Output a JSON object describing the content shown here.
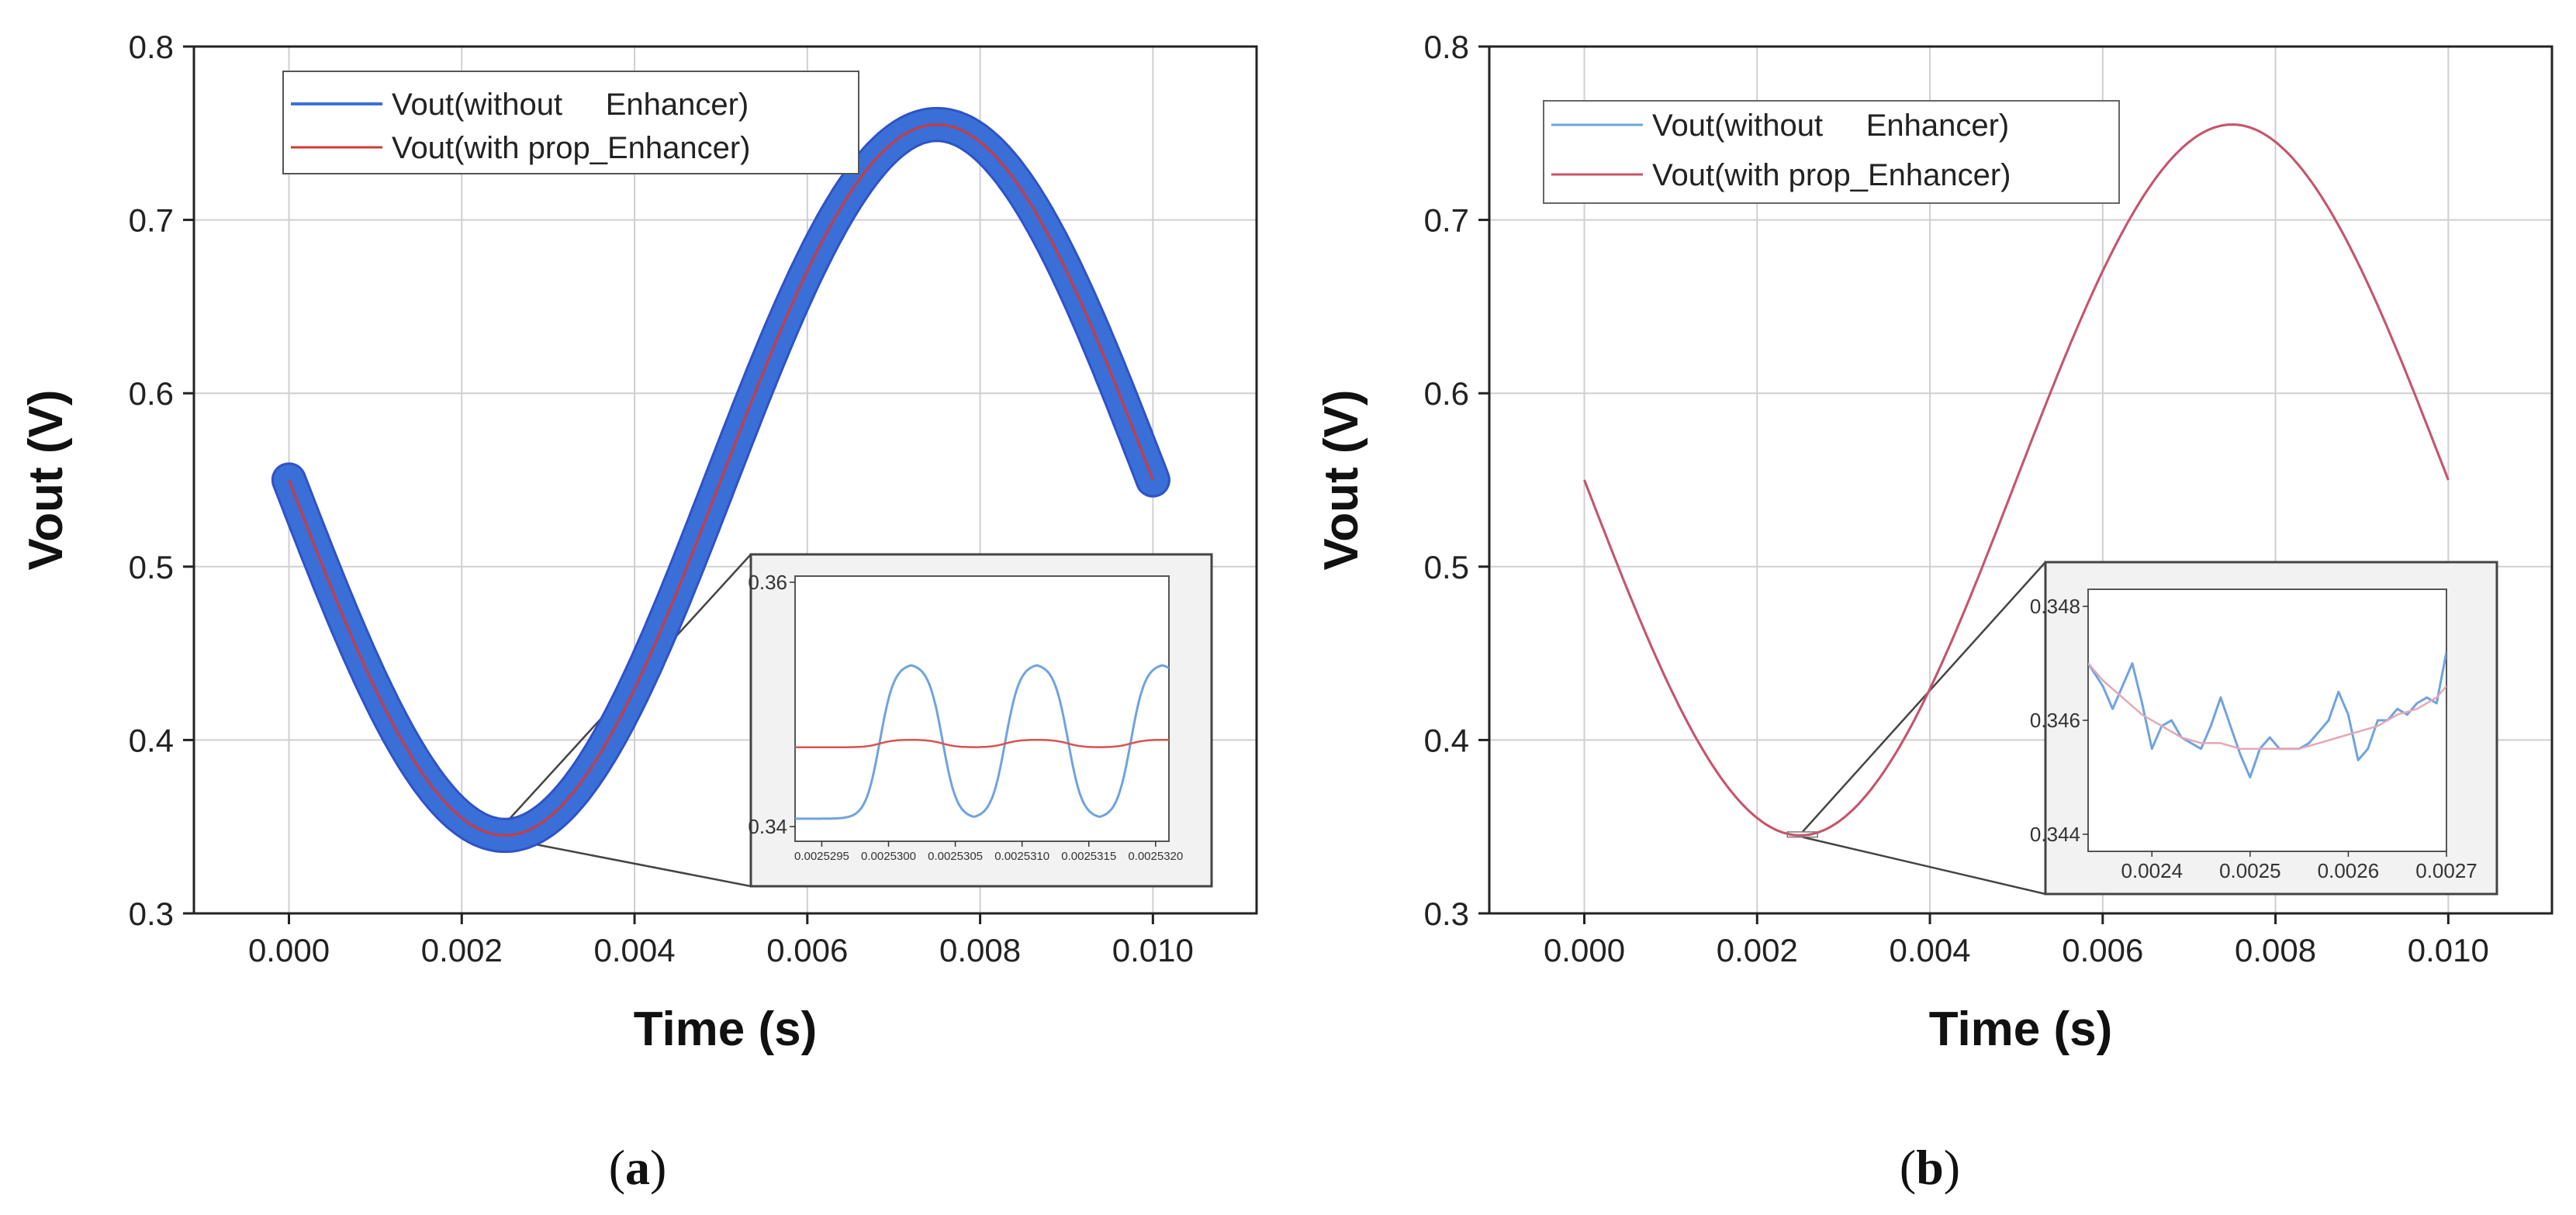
{
  "figure": {
    "captions": [
      "(a)",
      "(b)"
    ],
    "caption_letters": [
      "a",
      "b"
    ]
  },
  "chart_data": [
    {
      "id": "a",
      "type": "line",
      "title": "",
      "xlabel": "Time (s)",
      "ylabel": "Vout (V)",
      "xlim": [
        -0.0011,
        0.0112
      ],
      "ylim": [
        0.3,
        0.8
      ],
      "xticks": [
        0.0,
        0.002,
        0.004,
        0.006,
        0.008,
        0.01
      ],
      "xtick_labels": [
        "0.000",
        "0.002",
        "0.004",
        "0.006",
        "0.008",
        "0.010"
      ],
      "yticks": [
        0.3,
        0.4,
        0.5,
        0.6,
        0.7,
        0.8
      ],
      "ytick_labels": [
        "0.3",
        "0.4",
        "0.5",
        "0.6",
        "0.7",
        "0.8"
      ],
      "grid": true,
      "legend_position": "top-left",
      "series": [
        {
          "name": "Vout(without     Enhancer)",
          "color": "#3a6fd8",
          "offset": 0.55,
          "amplitude": 0.205,
          "frequency_hz": 100,
          "ripple_v": 0.008,
          "x_range": [
            0.0,
            0.01
          ]
        },
        {
          "name": "Vout(with prop_Enhancer)",
          "color": "#d0393a",
          "offset": 0.55,
          "amplitude": 0.205,
          "frequency_hz": 100,
          "ripple_v": 0.0,
          "x_range": [
            0.0,
            0.01
          ]
        }
      ],
      "zoom_region": {
        "x": [
          0.00245,
          0.0026
        ],
        "y": [
          0.343,
          0.353
        ]
      },
      "inset": {
        "xlim": [
          0.0025293,
          0.0025321
        ],
        "ylim": [
          0.3388,
          0.3605
        ],
        "xticks": [
          0.0025295,
          0.00253,
          0.0025305,
          0.002531,
          0.0025315,
          0.002532
        ],
        "xtick_labels": [
          "0.0025295",
          "0.0025300",
          "0.0025305",
          "0.0025310",
          "0.0025315",
          "0.0025320"
        ],
        "yticks": [
          0.34,
          0.36
        ],
        "ytick_labels": [
          "0.34",
          "0.36"
        ],
        "series": [
          {
            "name": "Vout(without     Enhancer)",
            "color": "#6fa3df",
            "center": 0.347,
            "ripple_amplitude": 0.0062,
            "period_s": 9.4e-07,
            "phase_s": 0.0025297
          },
          {
            "name": "Vout(with prop_Enhancer)",
            "color": "#d9534f",
            "center": 0.3468,
            "ripple_amplitude": 0.0003,
            "period_s": 9.4e-07,
            "phase_s": 0.0025297
          }
        ]
      }
    },
    {
      "id": "b",
      "type": "line",
      "title": "",
      "xlabel": "Time (s)",
      "ylabel": "Vout (V)",
      "xlim": [
        -0.0011,
        0.0112
      ],
      "ylim": [
        0.3,
        0.8
      ],
      "xticks": [
        0.0,
        0.002,
        0.004,
        0.006,
        0.008,
        0.01
      ],
      "xtick_labels": [
        "0.000",
        "0.002",
        "0.004",
        "0.006",
        "0.008",
        "0.010"
      ],
      "yticks": [
        0.3,
        0.4,
        0.5,
        0.6,
        0.7,
        0.8
      ],
      "ytick_labels": [
        "0.3",
        "0.4",
        "0.5",
        "0.6",
        "0.7",
        "0.8"
      ],
      "grid": true,
      "legend_position": "top-left",
      "series": [
        {
          "name": "Vout(without     Enhancer)",
          "color": "#6fa3df",
          "offset": 0.55,
          "amplitude": 0.205,
          "frequency_hz": 100,
          "ripple_v": 0.0,
          "x_range": [
            0.0,
            0.01
          ]
        },
        {
          "name": "Vout(with prop_Enhancer)",
          "color": "#c9546a",
          "offset": 0.55,
          "amplitude": 0.205,
          "frequency_hz": 100,
          "ripple_v": 0.0,
          "x_range": [
            0.0,
            0.01
          ]
        }
      ],
      "zoom_region": {
        "x": [
          0.00235,
          0.0027
        ],
        "y": [
          0.344,
          0.347
        ]
      },
      "inset": {
        "xlim": [
          0.002335,
          0.0027
        ],
        "ylim": [
          0.3437,
          0.3483
        ],
        "xticks": [
          0.0024,
          0.0025,
          0.0026,
          0.0027
        ],
        "xtick_labels": [
          "0.0024",
          "0.0025",
          "0.0026",
          "0.0027"
        ],
        "yticks": [
          0.344,
          0.346,
          0.348
        ],
        "ytick_labels": [
          "0.344",
          "0.346",
          "0.348"
        ],
        "series": [
          {
            "name": "Vout(without     Enhancer)",
            "color": "#6fa3df",
            "points": [
              [
                0.002335,
                0.347
              ],
              [
                0.00235,
                0.3466
              ],
              [
                0.00236,
                0.3462
              ],
              [
                0.00237,
                0.3466
              ],
              [
                0.00238,
                0.347
              ],
              [
                0.00239,
                0.3463
              ],
              [
                0.0024,
                0.3455
              ],
              [
                0.00241,
                0.3459
              ],
              [
                0.00242,
                0.346
              ],
              [
                0.00243,
                0.3457
              ],
              [
                0.00244,
                0.3456
              ],
              [
                0.00245,
                0.3455
              ],
              [
                0.00246,
                0.3459
              ],
              [
                0.00247,
                0.3464
              ],
              [
                0.00248,
                0.3459
              ],
              [
                0.00249,
                0.3454
              ],
              [
                0.0025,
                0.345
              ],
              [
                0.00251,
                0.3455
              ],
              [
                0.00252,
                0.3457
              ],
              [
                0.00253,
                0.3455
              ],
              [
                0.00254,
                0.3455
              ],
              [
                0.00255,
                0.3455
              ],
              [
                0.00256,
                0.3456
              ],
              [
                0.00257,
                0.3458
              ],
              [
                0.00258,
                0.346
              ],
              [
                0.00259,
                0.3465
              ],
              [
                0.0026,
                0.3461
              ],
              [
                0.00261,
                0.3453
              ],
              [
                0.00262,
                0.3455
              ],
              [
                0.00263,
                0.346
              ],
              [
                0.00264,
                0.346
              ],
              [
                0.00265,
                0.3462
              ],
              [
                0.00266,
                0.3461
              ],
              [
                0.00267,
                0.3463
              ],
              [
                0.00268,
                0.3464
              ],
              [
                0.00269,
                0.3463
              ],
              [
                0.0027,
                0.3472
              ]
            ]
          },
          {
            "name": "Vout(with prop_Enhancer)",
            "color": "#e5a8b4",
            "points": [
              [
                0.002335,
                0.347
              ],
              [
                0.00235,
                0.3467
              ],
              [
                0.00237,
                0.3464
              ],
              [
                0.00239,
                0.3461
              ],
              [
                0.00241,
                0.3459
              ],
              [
                0.00243,
                0.3457
              ],
              [
                0.00245,
                0.3456
              ],
              [
                0.00247,
                0.3456
              ],
              [
                0.00249,
                0.3455
              ],
              [
                0.00251,
                0.3455
              ],
              [
                0.00253,
                0.3455
              ],
              [
                0.00255,
                0.3455
              ],
              [
                0.00257,
                0.3456
              ],
              [
                0.00259,
                0.3457
              ],
              [
                0.00261,
                0.3458
              ],
              [
                0.00263,
                0.3459
              ],
              [
                0.00265,
                0.3461
              ],
              [
                0.00267,
                0.3462
              ],
              [
                0.00269,
                0.3464
              ],
              [
                0.0027,
                0.3466
              ]
            ]
          }
        ]
      }
    }
  ]
}
